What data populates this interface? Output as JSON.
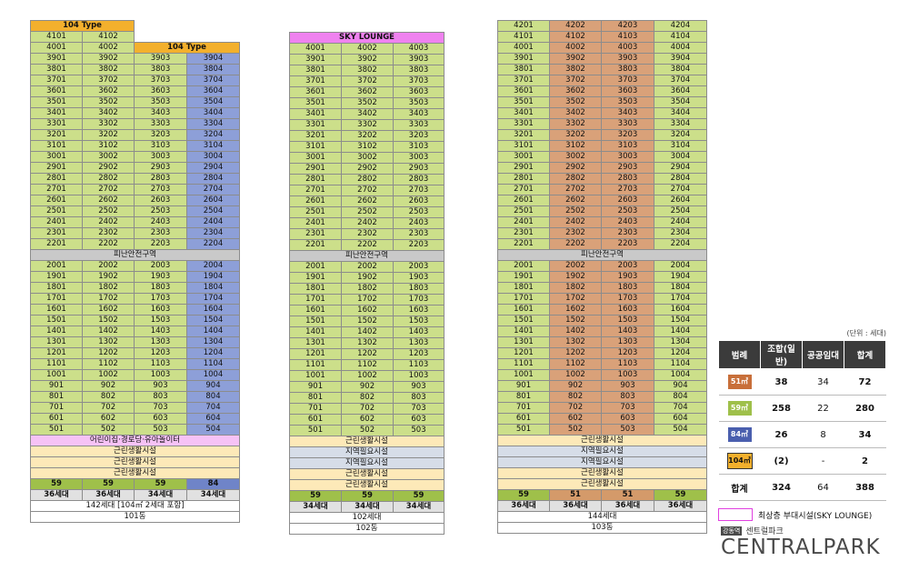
{
  "colors": {
    "green": "#ccdf8a",
    "blue": "#8d9fd8",
    "orange": "#d9a179",
    "gold": "#f3b02d",
    "magenta": "#ef82ef"
  },
  "refuge_label": "피난안전구역",
  "b101": {
    "type_label_top": "104 Type",
    "type_label_right": "104 Type",
    "row_4101": [
      "4101",
      "4102"
    ],
    "row_4001": [
      "4001",
      "4002"
    ],
    "sizes": [
      "59",
      "59",
      "59",
      "84"
    ],
    "households": [
      "36세대",
      "36세대",
      "34세대",
      "34세대"
    ],
    "total": "142세대 [104㎡ 2세대 포함]",
    "dong": "101동",
    "facilities": [
      "어린이집·경로당·유아놀이터",
      "근린생활시설",
      "근린생활시설",
      "근린생활시설"
    ]
  },
  "b102": {
    "sky_label": "SKY LOUNGE",
    "row_4001": [
      "4001",
      "4002",
      "4003"
    ],
    "sizes": [
      "59",
      "59",
      "59"
    ],
    "households": [
      "34세대",
      "34세대",
      "34세대"
    ],
    "total": "102세대",
    "dong": "102동",
    "facilities": [
      "근린생활시설",
      "지역필요시설",
      "지역필요시설",
      "근린생활시설",
      "근린생활시설"
    ]
  },
  "b103": {
    "row_4201": [
      "4201",
      "4202",
      "4203",
      "4204"
    ],
    "sizes": [
      "59",
      "51",
      "51",
      "59"
    ],
    "households": [
      "36세대",
      "36세대",
      "36세대",
      "36세대"
    ],
    "total": "144세대",
    "dong": "103동",
    "facilities": [
      "근린생활시설",
      "지역필요시설",
      "지역필요시설",
      "근린생활시설",
      "근린생활시설"
    ]
  },
  "legend": {
    "unit": "(단위 : 세대)",
    "headers": [
      "범례",
      "조합(일반)",
      "공공임대",
      "합계"
    ],
    "rows": [
      {
        "label": "51㎡",
        "color": "#c86f3a",
        "union": "38",
        "public": "34",
        "total": "72"
      },
      {
        "label": "59㎡",
        "color": "#9fc04a",
        "union": "258",
        "public": "22",
        "total": "280"
      },
      {
        "label": "84㎡",
        "color": "#4a5fae",
        "union": "26",
        "public": "8",
        "total": "34"
      },
      {
        "label": "104㎡",
        "color": "#f3b02d",
        "union": "(2)",
        "public": "-",
        "total": "2"
      }
    ],
    "sum_label": "합계",
    "sum": [
      "324",
      "64",
      "388"
    ],
    "sky_note": "최상층 부대시설(SKY LOUNGE)"
  },
  "logo": {
    "badge": "강동역",
    "sub": "센트럴파크",
    "main": "CENTRALPARK"
  }
}
